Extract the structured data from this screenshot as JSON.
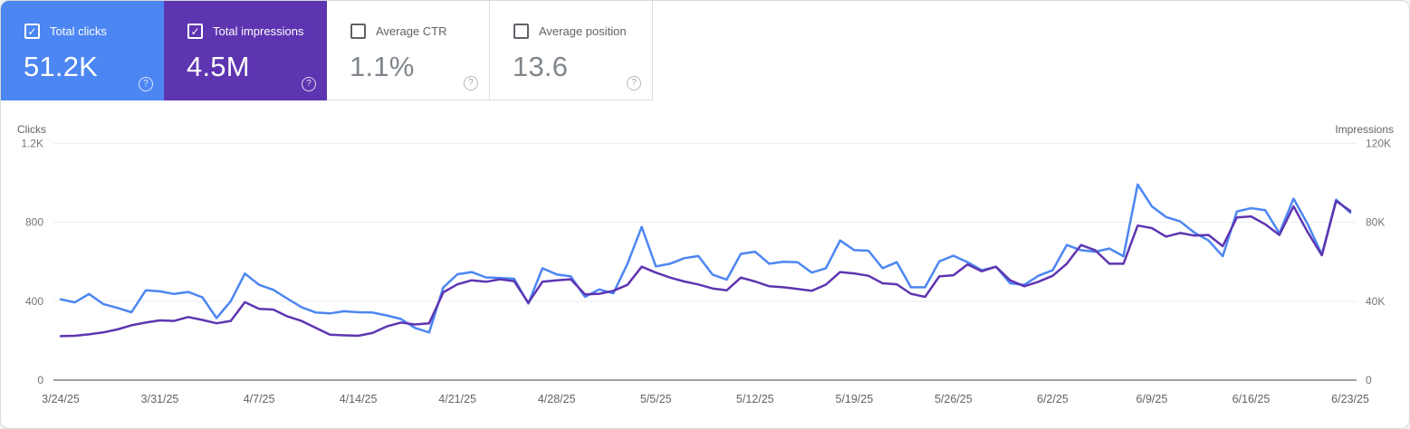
{
  "app": "Search Console Performance",
  "colors": {
    "clicks_blue": "#4c86f2",
    "impressions_purple": "#5e35b1",
    "gridline": "#eceef0",
    "axis_line": "#9aa0a6",
    "label_gray": "#5f6368"
  },
  "cards": [
    {
      "id": "total-clicks",
      "label": "Total clicks",
      "value": "51.2K",
      "selected": true,
      "color": "#4c86f2",
      "help_icon": "question-circle"
    },
    {
      "id": "total-impressions",
      "label": "Total impressions",
      "value": "4.5M",
      "selected": true,
      "color": "#5e35b1",
      "help_icon": "question-circle"
    },
    {
      "id": "average-ctr",
      "label": "Average CTR",
      "value": "1.1%",
      "selected": false,
      "color": "#ffffff",
      "help_icon": "question-circle"
    },
    {
      "id": "average-position",
      "label": "Average position",
      "value": "13.6",
      "selected": false,
      "color": "#ffffff",
      "help_icon": "question-circle"
    }
  ],
  "checkmark_glyph": "✓",
  "help_glyph": "?",
  "chart_data": {
    "type": "line",
    "x_start": "3/24/25",
    "x_end": "6/23/25",
    "x_frequency": "daily",
    "x_tick_labels": [
      "3/24/25",
      "3/31/25",
      "4/7/25",
      "4/14/25",
      "4/21/25",
      "4/28/25",
      "5/5/25",
      "5/12/25",
      "5/19/25",
      "5/26/25",
      "6/2/25",
      "6/9/25",
      "6/16/25",
      "6/23/25"
    ],
    "left_axis": {
      "title": "Clicks",
      "ticks": [
        "1.2K",
        "800",
        "400",
        "0"
      ],
      "max": 1200
    },
    "right_axis": {
      "title": "Impressions",
      "ticks": [
        "120K",
        "80K",
        "40K",
        "0"
      ],
      "max": 120000
    },
    "grid": true,
    "legend": "none (cards act as legend)",
    "series": [
      {
        "id": "total-clicks",
        "name": "Total clicks",
        "axis": "left",
        "color": "#4c86f2",
        "values": [
          410,
          394,
          437,
          386,
          366,
          344,
          455,
          450,
          437,
          447,
          420,
          315,
          400,
          540,
          483,
          458,
          413,
          370,
          343,
          338,
          349,
          344,
          343,
          328,
          310,
          265,
          242,
          470,
          537,
          548,
          521,
          518,
          514,
          388,
          567,
          536,
          526,
          422,
          460,
          440,
          590,
          777,
          577,
          590,
          618,
          629,
          535,
          510,
          640,
          651,
          590,
          600,
          598,
          545,
          567,
          708,
          659,
          656,
          567,
          598,
          471,
          471,
          602,
          631,
          598,
          557,
          575,
          491,
          483,
          529,
          557,
          685,
          659,
          651,
          667,
          628,
          992,
          881,
          827,
          805,
          748,
          708,
          628,
          855,
          872,
          862,
          745,
          920,
          790,
          637,
          915,
          850
        ]
      },
      {
        "id": "total-impressions",
        "name": "Total impressions",
        "axis": "right",
        "color": "#5e35b1",
        "values": [
          22300,
          22500,
          23200,
          24200,
          25700,
          27800,
          29200,
          30300,
          30000,
          32000,
          30500,
          28800,
          30000,
          39500,
          36100,
          35800,
          32300,
          30000,
          26500,
          23100,
          22700,
          22500,
          23900,
          27200,
          29200,
          28200,
          28800,
          44500,
          48600,
          50600,
          49900,
          51100,
          50200,
          39200,
          49900,
          50600,
          51100,
          43500,
          43800,
          45300,
          48300,
          57500,
          54500,
          52000,
          50000,
          48500,
          46500,
          45500,
          52000,
          50000,
          47600,
          47100,
          46200,
          45300,
          48400,
          54800,
          54100,
          52900,
          49100,
          48600,
          43800,
          42200,
          52600,
          53200,
          58700,
          55200,
          57500,
          50600,
          47600,
          49900,
          52900,
          59000,
          68500,
          65900,
          59000,
          59000,
          78400,
          77100,
          72800,
          74600,
          73300,
          73600,
          67900,
          82500,
          83000,
          79000,
          73600,
          88100,
          75000,
          63300,
          90800,
          85800
        ]
      }
    ]
  }
}
